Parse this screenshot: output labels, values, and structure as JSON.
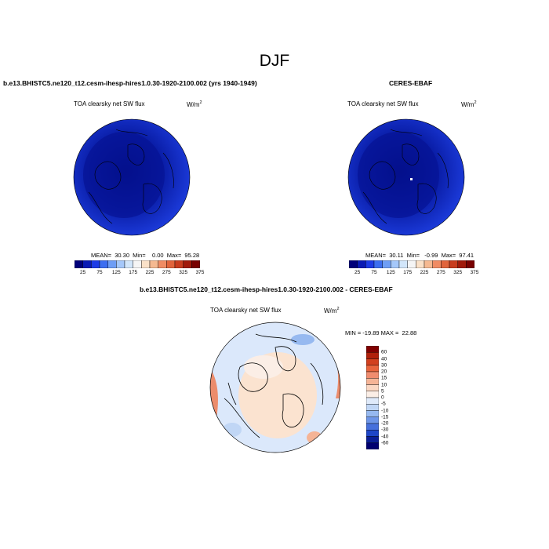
{
  "title": "DJF",
  "panels": [
    {
      "case": "b.e13.BHISTC5.ne120_t12.cesm-ihesp-hires1.0.30-1920-2100.002 (yrs 1940-1949)",
      "variable": "TOA clearsky net SW flux",
      "units": "W/m",
      "units_exp": "2",
      "stats": "MEAN=  30.30  Min=    0.00  Max=  95.28"
    },
    {
      "case": "CERES-EBAF",
      "variable": "TOA clearsky net SW flux",
      "units": "W/m",
      "units_exp": "2",
      "stats": "MEAN=  30.11  Min=   -0.99  Max=  97.41"
    }
  ],
  "abs_colorbar": {
    "labels": [
      "25",
      "75",
      "125",
      "175",
      "225",
      "275",
      "325",
      "375"
    ],
    "colors": [
      "#00007a",
      "#0a1ab4",
      "#1e3ce6",
      "#3c6ef0",
      "#6e9ef5",
      "#a5c8fa",
      "#d2e6fa",
      "#f5f5f5",
      "#fae1c8",
      "#f5b991",
      "#f08c64",
      "#e1643c",
      "#c83c1e",
      "#a0190a",
      "#780000"
    ]
  },
  "diff_panel": {
    "case": "b.e13.BHISTC5.ne120_t12.cesm-ihesp-hires1.0.30-1920-2100.002 - CERES-EBAF",
    "variable": "TOA clearsky net SW flux",
    "units": "W/m",
    "units_exp": "2",
    "stats": "MIN = -19.89 MAX =  22.88"
  },
  "diff_colorbar": {
    "labels": [
      "60",
      "40",
      "30",
      "20",
      "15",
      "10",
      "5",
      "0",
      "-5",
      "-10",
      "-15",
      "-20",
      "-30",
      "-40",
      "-60"
    ],
    "colors": [
      "#800000",
      "#b0200a",
      "#d2401e",
      "#e8643c",
      "#f08c6e",
      "#f5b496",
      "#fad7c3",
      "#fbeee6",
      "#dfeafa",
      "#c0d6f5",
      "#96b9f0",
      "#6e96e8",
      "#4670dc",
      "#1e46c8",
      "#0a1e96",
      "#000070"
    ]
  },
  "colors": {
    "abs_map_fill": "#1232d2",
    "abs_map_inner": "#0a1496",
    "diff_map_fill": "#dbe8fb",
    "diff_map_warm": "#fbe3d0",
    "diff_map_red": "#ec8c6c"
  }
}
